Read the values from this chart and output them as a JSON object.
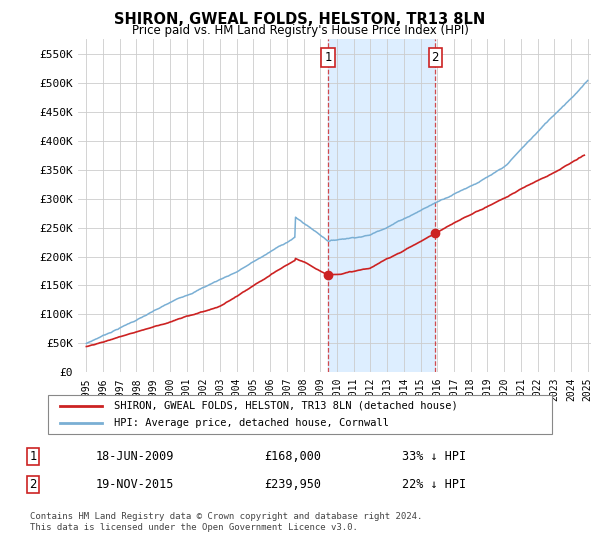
{
  "title": "SHIRON, GWEAL FOLDS, HELSTON, TR13 8LN",
  "subtitle": "Price paid vs. HM Land Registry's House Price Index (HPI)",
  "ylim": [
    0,
    575000
  ],
  "yticks": [
    0,
    50000,
    100000,
    150000,
    200000,
    250000,
    300000,
    350000,
    400000,
    450000,
    500000,
    550000
  ],
  "ytick_labels": [
    "£0",
    "£50K",
    "£100K",
    "£150K",
    "£200K",
    "£250K",
    "£300K",
    "£350K",
    "£400K",
    "£450K",
    "£500K",
    "£550K"
  ],
  "hpi_color": "#7aafd4",
  "price_color": "#cc2222",
  "sale1_date": 2009.46,
  "sale1_price": 168000,
  "sale2_date": 2015.88,
  "sale2_price": 239950,
  "shade_start1": 2009.46,
  "shade_end1": 2015.88,
  "shade_color": "#ddeeff",
  "legend_label1": "SHIRON, GWEAL FOLDS, HELSTON, TR13 8LN (detached house)",
  "legend_label2": "HPI: Average price, detached house, Cornwall",
  "annotation1_label": "1",
  "annotation2_label": "2",
  "note1_num": "1",
  "note1_date": "18-JUN-2009",
  "note1_price": "£168,000",
  "note1_hpi": "33% ↓ HPI",
  "note2_num": "2",
  "note2_date": "19-NOV-2015",
  "note2_price": "£239,950",
  "note2_hpi": "22% ↓ HPI",
  "footer": "Contains HM Land Registry data © Crown copyright and database right 2024.\nThis data is licensed under the Open Government Licence v3.0.",
  "background_color": "#ffffff",
  "grid_color": "#cccccc",
  "xmin": 1995,
  "xmax": 2025
}
